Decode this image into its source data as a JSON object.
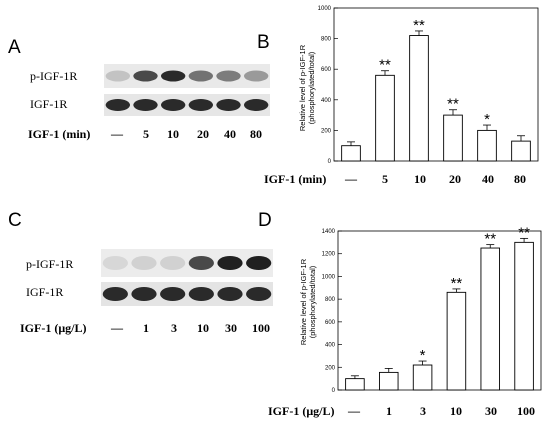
{
  "panels": [
    {
      "letter": "A",
      "blot_labels": [
        "p-IGF-1R",
        "IGF-1R"
      ],
      "condition_title": "IGF-1 (min)",
      "conditions": [
        "—",
        "5",
        "10",
        "20",
        "40",
        "80"
      ],
      "band_intensity": {
        "p-IGF-1R": [
          0.15,
          0.75,
          0.9,
          0.55,
          0.5,
          0.35
        ],
        "IGF-1R": [
          0.9,
          0.9,
          0.9,
          0.9,
          0.9,
          0.9
        ]
      }
    },
    {
      "letter": "C",
      "blot_labels": [
        "p-IGF-1R",
        "IGF-1R"
      ],
      "condition_title": "IGF-1 (μg/L)",
      "conditions": [
        "—",
        "1",
        "3",
        "10",
        "30",
        "100"
      ],
      "band_intensity": {
        "p-IGF-1R": [
          0.05,
          0.08,
          0.08,
          0.75,
          0.95,
          0.95
        ],
        "IGF-1R": [
          0.9,
          0.9,
          0.9,
          0.9,
          0.9,
          0.9
        ]
      }
    }
  ],
  "chart_data": [
    {
      "panel_letter": "B",
      "type": "bar",
      "categories": [
        "—",
        "5",
        "10",
        "20",
        "40",
        "80"
      ],
      "values": [
        100,
        560,
        820,
        300,
        200,
        130
      ],
      "errors": [
        25,
        30,
        30,
        35,
        35,
        35
      ],
      "significance": [
        "",
        "**",
        "**",
        "**",
        "*",
        ""
      ],
      "xlabel": "IGF-1 (min)",
      "ylabel_lines": [
        "Relative level of p-IGF-1R",
        "(phosphorylated/total)"
      ],
      "ylim": [
        0,
        1000
      ],
      "yticks": [
        0,
        200,
        400,
        600,
        800,
        1000
      ],
      "grid": false,
      "legend": false
    },
    {
      "panel_letter": "D",
      "type": "bar",
      "categories": [
        "—",
        "1",
        "3",
        "10",
        "30",
        "100"
      ],
      "values": [
        100,
        155,
        220,
        860,
        1250,
        1300
      ],
      "errors": [
        25,
        35,
        35,
        30,
        30,
        35
      ],
      "significance": [
        "",
        "",
        "*",
        "**",
        "**",
        "**"
      ],
      "xlabel": "IGF-1 (μg/L)",
      "ylabel_lines": [
        "Relative level of p-IGF-1R",
        "(phosphorylated/total)"
      ],
      "ylim": [
        0,
        1400
      ],
      "yticks": [
        0,
        200,
        400,
        600,
        800,
        1000,
        1200,
        1400
      ],
      "grid": false,
      "legend": false
    }
  ]
}
